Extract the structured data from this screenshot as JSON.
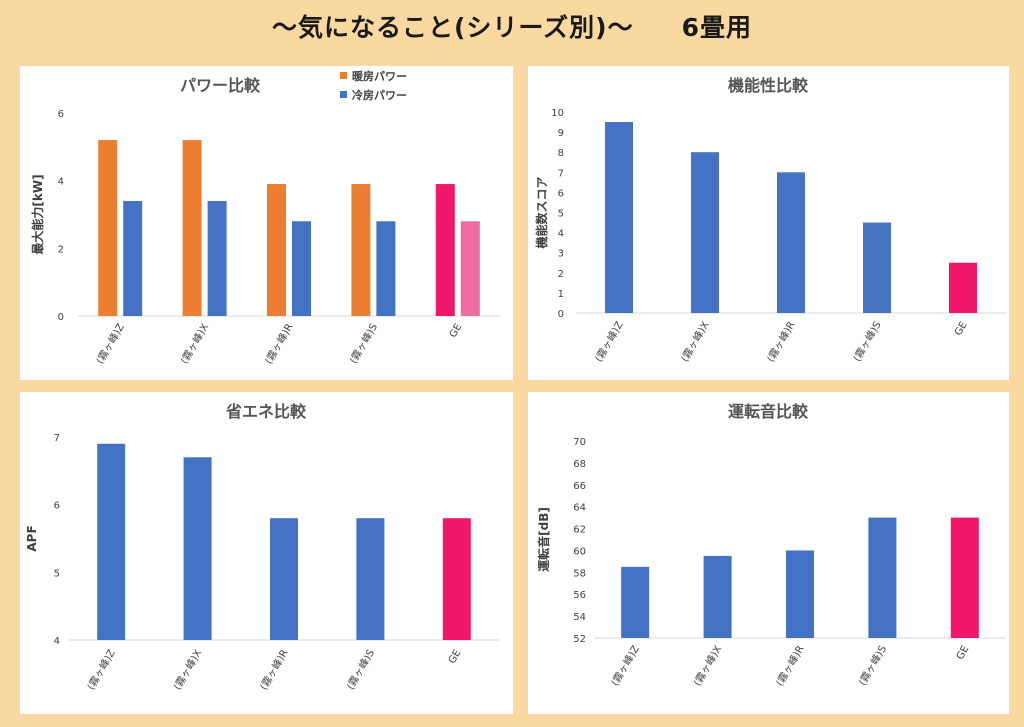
{
  "header": {
    "title": "～気になること(シリーズ別)～",
    "suffix": "6畳用"
  },
  "categories": [
    "(霧ヶ峰)Z",
    "(霧ヶ峰)X",
    "(霧ヶ峰)R",
    "(霧ヶ峰)S",
    "GE"
  ],
  "colors": {
    "heat": "#ed7d31",
    "cool": "#4472c4",
    "highlight": "#f0166a",
    "highlight_light": "#f06ba0"
  },
  "chart_data": [
    {
      "type": "bar",
      "title": "パワー比較",
      "ylabel": "最大能力[kW]",
      "ylim": [
        0,
        6
      ],
      "yticks": [
        0,
        2,
        4,
        6
      ],
      "categories": [
        "(霧ヶ峰)Z",
        "(霧ヶ峰)X",
        "(霧ヶ峰)R",
        "(霧ヶ峰)S",
        "GE"
      ],
      "series": [
        {
          "name": "暖房パワー",
          "values": [
            5.2,
            5.2,
            3.9,
            3.9,
            3.9
          ]
        },
        {
          "name": "冷房パワー",
          "values": [
            3.4,
            3.4,
            2.8,
            2.8,
            2.8
          ]
        }
      ],
      "legend": "top-right"
    },
    {
      "type": "bar",
      "title": "機能性比較",
      "ylabel": "機能数スコア",
      "ylim": [
        0,
        10
      ],
      "yticks": [
        0,
        1,
        2,
        3,
        4,
        5,
        6,
        7,
        8,
        9,
        10
      ],
      "categories": [
        "(霧ヶ峰)Z",
        "(霧ヶ峰)X",
        "(霧ヶ峰)R",
        "(霧ヶ峰)S",
        "GE"
      ],
      "values": [
        9.5,
        8,
        7,
        4.5,
        2.5
      ]
    },
    {
      "type": "bar",
      "title": "省エネ比較",
      "ylabel": "APF",
      "ylim": [
        4,
        7
      ],
      "yticks": [
        4,
        5,
        6,
        7
      ],
      "categories": [
        "(霧ヶ峰)Z",
        "(霧ヶ峰)X",
        "(霧ヶ峰)R",
        "(霧ヶ峰)S",
        "GE"
      ],
      "values": [
        6.9,
        6.7,
        5.8,
        5.8,
        5.8
      ]
    },
    {
      "type": "bar",
      "title": "運転音比較",
      "ylabel": "運転音[dB]",
      "ylim": [
        52,
        70
      ],
      "yticks": [
        52,
        54,
        56,
        58,
        60,
        62,
        64,
        66,
        68,
        70
      ],
      "categories": [
        "(霧ヶ峰)Z",
        "(霧ヶ峰)X",
        "(霧ヶ峰)R",
        "(霧ヶ峰)S",
        "GE"
      ],
      "values": [
        58.5,
        59.5,
        60,
        63,
        63
      ]
    }
  ]
}
